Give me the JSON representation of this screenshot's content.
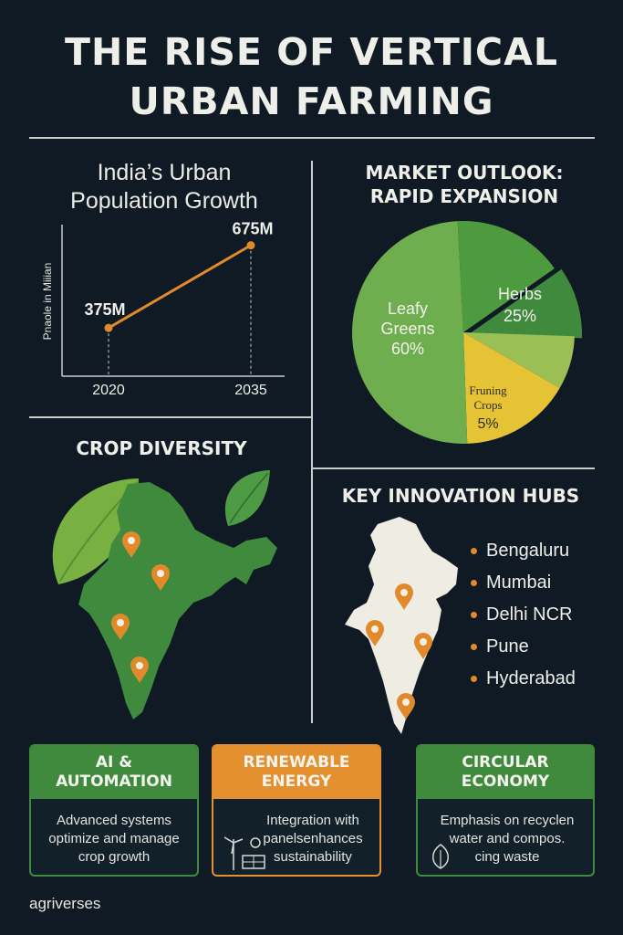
{
  "header": {
    "title_line1": "THE RISE OF VERTICAL",
    "title_line2": "URBAN FARMING"
  },
  "population": {
    "title_line1": "India’s Urban",
    "title_line2": "Population Growth",
    "chart_data": {
      "type": "line",
      "title": "India’s Urban Population Growth",
      "xlabel": "",
      "ylabel": "Pnaole in Miiian",
      "x": [
        "2020",
        "2035"
      ],
      "series": [
        {
          "values": [
            375,
            675
          ]
        }
      ],
      "data_labels": [
        "375M",
        "675M"
      ],
      "ylim": [
        200,
        750
      ],
      "line_color": "#e08a2c"
    }
  },
  "market": {
    "title_line1": "MARKET OUTLOOK:",
    "title_line2": "RAPID EXPANSION",
    "chart_data": {
      "type": "pie",
      "slices": [
        {
          "name": "Leafy Greens",
          "label_line1": "Leafy",
          "label_line2": "Greens",
          "value_label": "60%",
          "value": 60,
          "color": "#6fae4f"
        },
        {
          "name": "Herbs",
          "label_line1": "Herbs",
          "label_line2": "",
          "value_label": "25%",
          "value": 25,
          "color": "#3f8a3c"
        },
        {
          "name": "Fruning Crops",
          "label_line1": "Fruning",
          "label_line2": "Crops",
          "value_label": "5%",
          "value": 5,
          "color": "#e6c335"
        }
      ],
      "extra_colors": [
        "#4e9a3f",
        "#9bbf55"
      ]
    }
  },
  "crop": {
    "title": "CROP DIVERSITY"
  },
  "hubs": {
    "title": "KEY INNOVATION HUBS",
    "items": [
      "Bengaluru",
      "Mumbai",
      "Delhi NCR",
      "Pune",
      "Hyderabad"
    ]
  },
  "cards": [
    {
      "title": "AI &\nAUTOMATION",
      "text": "Advanced systems\noptimize and manage\ncrop growth",
      "icon": "none"
    },
    {
      "title": "RENEWABLE\nENERGY",
      "text": "Integration with\npanelsenhances\nsustainability",
      "icon": "wind-solar-icon"
    },
    {
      "title": "CIRCULAR\nECONOMY",
      "text": "Emphasis on recyclen\nwater and compos.\ncing waste",
      "icon": "recycle-leaf-icon"
    }
  ],
  "footer": {
    "brand": "agriverses"
  },
  "colors": {
    "background": "#0f1a24",
    "green": "#3f8a3c",
    "orange": "#e08a2c",
    "map_light": "#efece4"
  }
}
